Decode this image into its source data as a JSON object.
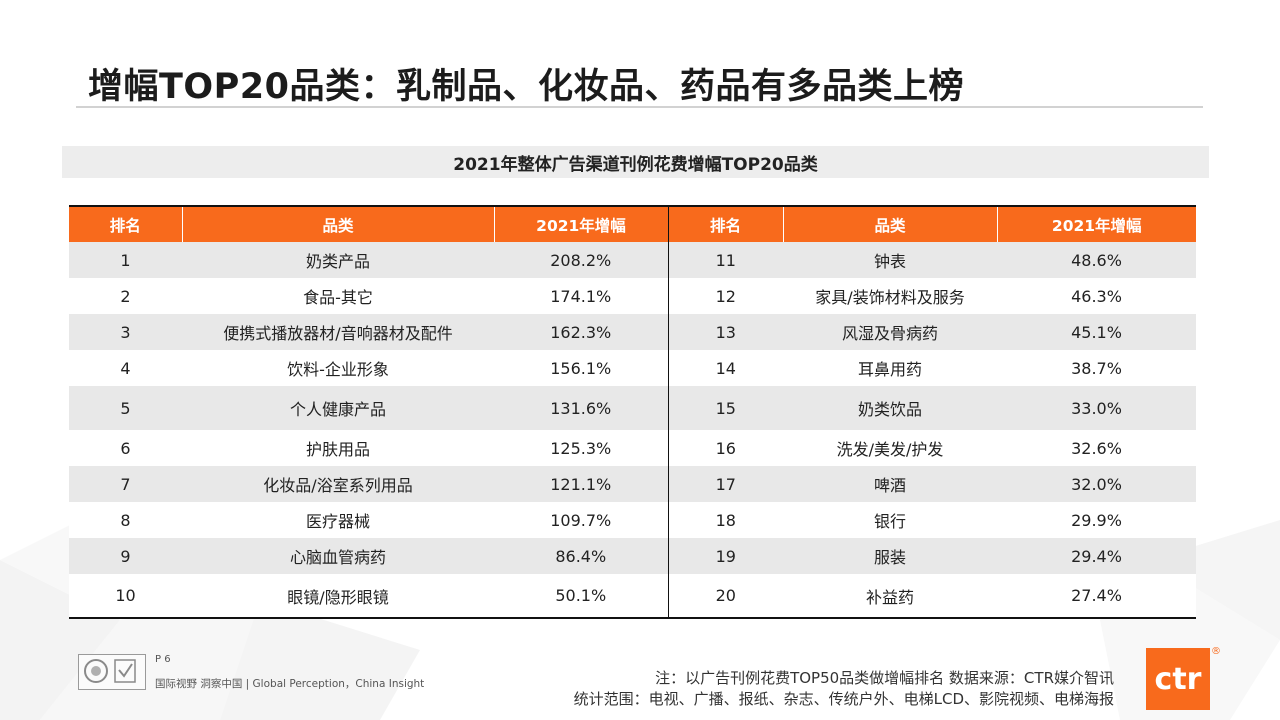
{
  "title": "增幅TOP20品类：乳制品、化妆品、药品有多品类上榜",
  "subtitle": "2021年整体广告渠道刊例花费增幅TOP20品类",
  "table": {
    "headers": [
      "排名",
      "品类",
      "2021年增幅",
      "排名",
      "品类",
      "2021年增幅"
    ],
    "rows": [
      {
        "rank_l": "1",
        "cat_l": "奶类产品",
        "val_l": "208.2%",
        "rank_r": "11",
        "cat_r": "钟表",
        "val_r": "48.6%"
      },
      {
        "rank_l": "2",
        "cat_l": "食品-其它",
        "val_l": "174.1%",
        "rank_r": "12",
        "cat_r": "家具/装饰材料及服务",
        "val_r": "46.3%"
      },
      {
        "rank_l": "3",
        "cat_l": "便携式播放器材/音响器材及配件",
        "val_l": "162.3%",
        "rank_r": "13",
        "cat_r": "风湿及骨病药",
        "val_r": "45.1%"
      },
      {
        "rank_l": "4",
        "cat_l": "饮料-企业形象",
        "val_l": "156.1%",
        "rank_r": "14",
        "cat_r": "耳鼻用药",
        "val_r": "38.7%"
      },
      {
        "rank_l": "5",
        "cat_l": "个人健康产品",
        "val_l": "131.6%",
        "rank_r": "15",
        "cat_r": "奶类饮品",
        "val_r": "33.0%"
      },
      {
        "rank_l": "6",
        "cat_l": "护肤用品",
        "val_l": "125.3%",
        "rank_r": "16",
        "cat_r": "洗发/美发/护发",
        "val_r": "32.6%"
      },
      {
        "rank_l": "7",
        "cat_l": "化妆品/浴室系列用品",
        "val_l": "121.1%",
        "rank_r": "17",
        "cat_r": "啤酒",
        "val_r": "32.0%"
      },
      {
        "rank_l": "8",
        "cat_l": "医疗器械",
        "val_l": "109.7%",
        "rank_r": "18",
        "cat_r": "银行",
        "val_r": "29.9%"
      },
      {
        "rank_l": "9",
        "cat_l": "心脑血管病药",
        "val_l": "86.4%",
        "rank_r": "19",
        "cat_r": "服装",
        "val_r": "29.4%"
      },
      {
        "rank_l": "10",
        "cat_l": "眼镜/隐形眼镜",
        "val_l": "50.1%",
        "rank_r": "20",
        "cat_r": "补益药",
        "val_r": "27.4%"
      }
    ]
  },
  "footer": {
    "page_number": "P 6",
    "tagline": "国际视野  洞察中国 | Global Perception，China Insight",
    "note_line1": "注：以广告刊例花费TOP50品类做增幅排名   数据来源：CTR媒介智讯",
    "note_line2": "统计范围：电视、广播、报纸、杂志、传统户外、电梯LCD、影院视频、电梯海报",
    "brand": "ctr",
    "reg_mark": "®"
  },
  "colors": {
    "accent": "#f86a1c",
    "stripe": "#e8e8e8",
    "subtitle_bg": "#ededed"
  }
}
